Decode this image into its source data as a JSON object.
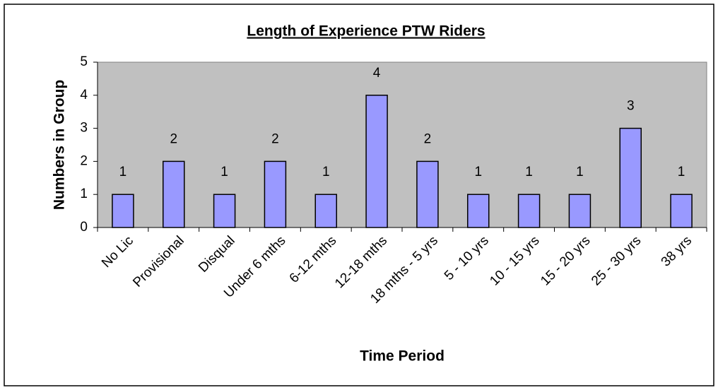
{
  "chart_data": {
    "type": "bar",
    "title": "Length of Experience PTW Riders",
    "x_label": "Time Period",
    "y_label": "Numbers in Group",
    "categories": [
      "No Lic",
      "Provisional",
      "Disqual",
      "Under 6 mths",
      "6-12 mths",
      "12-18 mths",
      "18 mths - 5 yrs",
      "5 - 10 yrs",
      "10 - 15 yrs",
      "15 - 20 yrs",
      "25 - 30 yrs",
      "38 yrs"
    ],
    "values": [
      1,
      2,
      1,
      2,
      1,
      4,
      2,
      1,
      1,
      1,
      3,
      1
    ],
    "color": "#9999ff",
    "plot_background": "#c0c0c0",
    "ylim": [
      0,
      5
    ],
    "yticks": [
      0,
      1,
      2,
      3,
      4,
      5
    ],
    "grid": false
  }
}
